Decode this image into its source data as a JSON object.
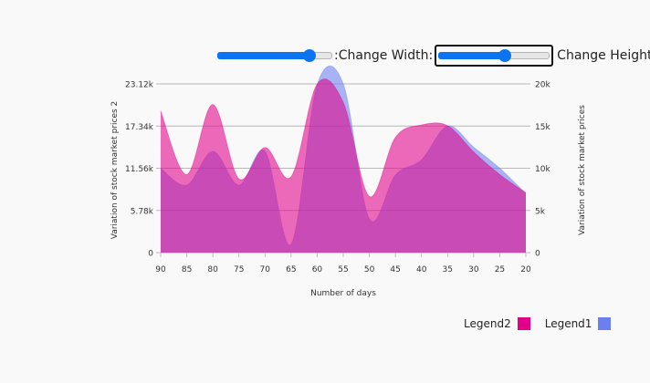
{
  "controls": {
    "width_label": ":Change Width:",
    "height_label": "Change Height",
    "width_value": 0.8,
    "height_value": 0.6
  },
  "chart_data": {
    "type": "area",
    "xlabel": "Number of days",
    "x": [
      90,
      85,
      80,
      75,
      70,
      65,
      60,
      55,
      50,
      45,
      40,
      35,
      30,
      25,
      20
    ],
    "x_reversed": true,
    "grid": true,
    "legend_position": "bottom-right",
    "axes": {
      "left": {
        "label": "Variation of stock market prices 2",
        "range": [
          0,
          23120
        ],
        "ticks": [
          0,
          5780,
          11560,
          17340,
          23120
        ],
        "tick_labels": [
          "0",
          "5.78k",
          "11.56k",
          "17.34k",
          "23.12k"
        ]
      },
      "right": {
        "label": "Variation of stock market prices",
        "range": [
          0,
          20000
        ],
        "ticks": [
          0,
          5000,
          10000,
          15000,
          20000
        ],
        "tick_labels": [
          "0",
          "5k",
          "10k",
          "15k",
          "20k"
        ]
      }
    },
    "series": [
      {
        "name": "Legend1",
        "axis": "right",
        "color": "#6b7ff0",
        "values": [
          10000,
          8000,
          12000,
          8000,
          12000,
          1000,
          19900,
          20000,
          4000,
          9200,
          11000,
          15000,
          12500,
          10000,
          7000
        ]
      },
      {
        "name": "Legend2",
        "axis": "left",
        "color": "#e2008a",
        "values": [
          19400,
          10700,
          20300,
          10100,
          14400,
          10400,
          23100,
          20600,
          7700,
          15800,
          17500,
          17400,
          13800,
          10700,
          8200
        ]
      }
    ]
  },
  "legend": [
    {
      "label": "Legend2",
      "color": "#e2008a"
    },
    {
      "label": "Legend1",
      "color": "#6b7ff0"
    }
  ]
}
